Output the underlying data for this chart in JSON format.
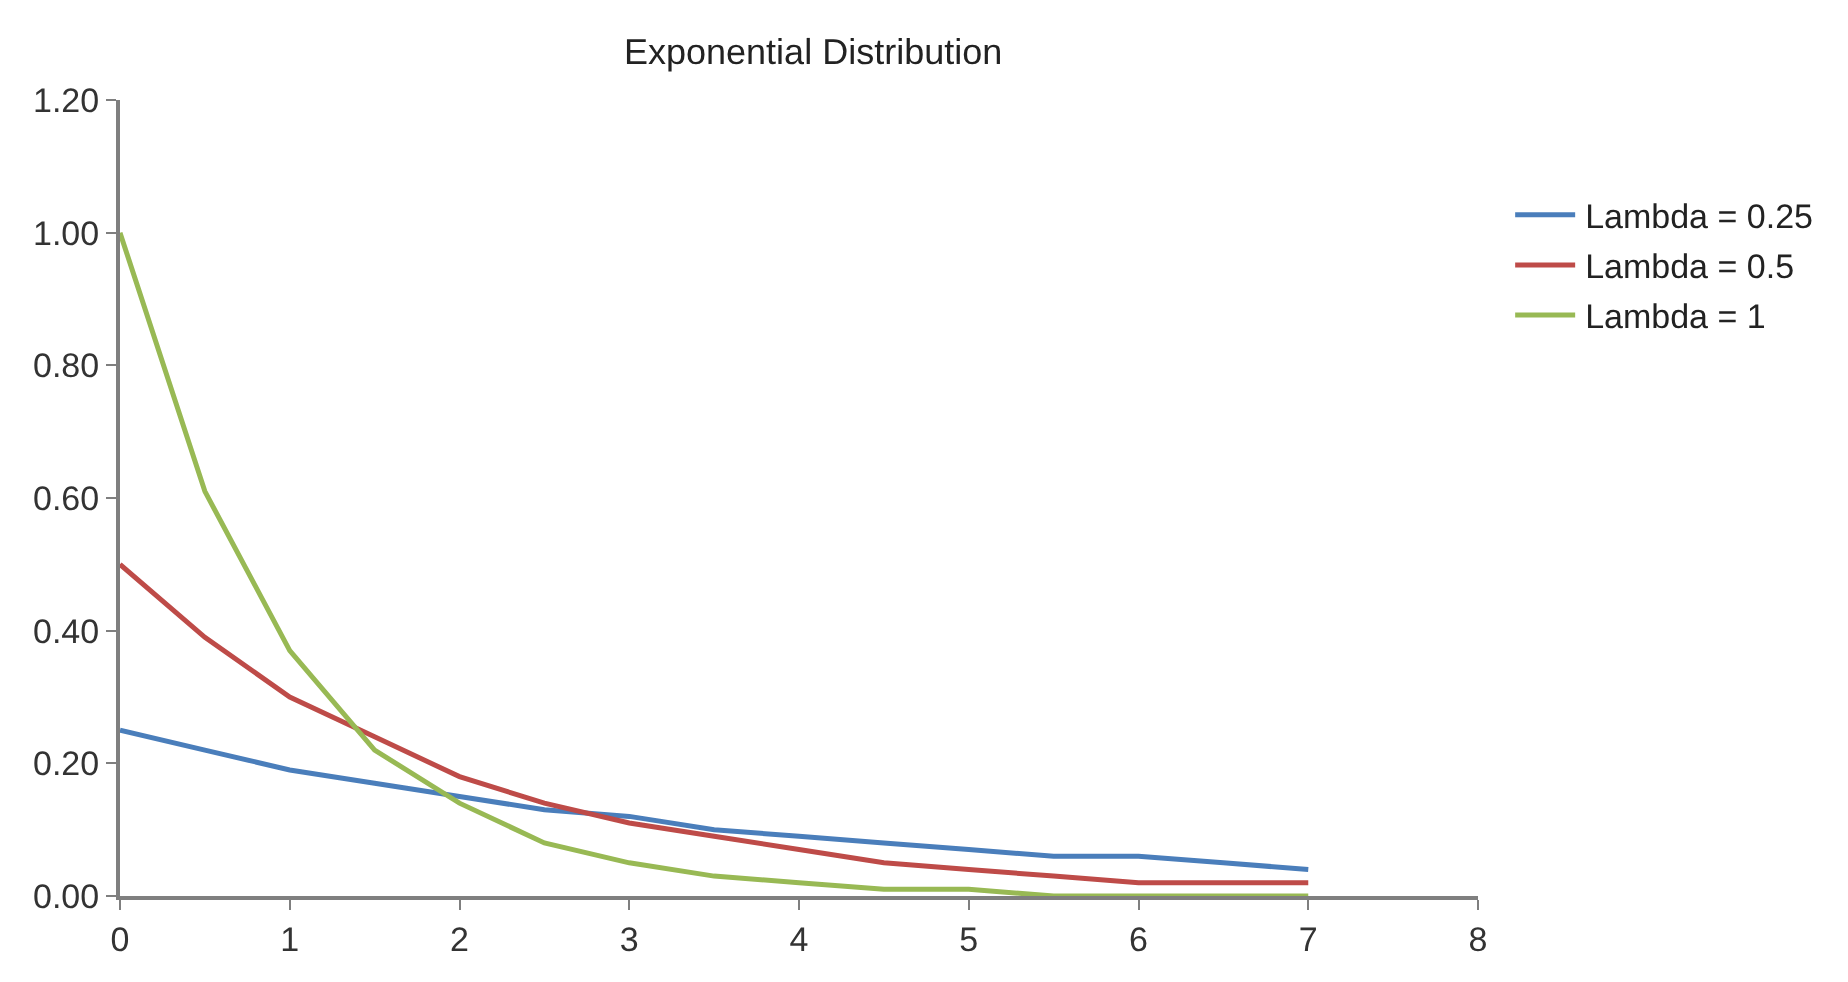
{
  "chart_data": {
    "type": "line",
    "title": "Exponential Distribution",
    "x": [
      0,
      0.5,
      1,
      1.5,
      2,
      2.5,
      3,
      3.5,
      4,
      4.5,
      5,
      5.5,
      6,
      6.5,
      7
    ],
    "series": [
      {
        "name": "Lambda = 0.25",
        "color": "#4a7ebb",
        "values": [
          0.25,
          0.22,
          0.19,
          0.17,
          0.15,
          0.13,
          0.12,
          0.1,
          0.09,
          0.08,
          0.07,
          0.06,
          0.06,
          0.05,
          0.04
        ]
      },
      {
        "name": "Lambda = 0.5",
        "color": "#be4b48",
        "values": [
          0.5,
          0.39,
          0.3,
          0.24,
          0.18,
          0.14,
          0.11,
          0.09,
          0.07,
          0.05,
          0.04,
          0.03,
          0.02,
          0.02,
          0.02
        ]
      },
      {
        "name": "Lambda = 1",
        "color": "#98b954",
        "values": [
          1.0,
          0.61,
          0.37,
          0.22,
          0.14,
          0.08,
          0.05,
          0.03,
          0.02,
          0.01,
          0.01,
          0.0,
          0.0,
          0.0,
          0.0
        ]
      }
    ],
    "xlim": [
      0,
      8
    ],
    "xticks": [
      0,
      1,
      2,
      3,
      4,
      5,
      6,
      7,
      8
    ],
    "ylim": [
      0,
      1.2
    ],
    "yticks": [
      {
        "value": 0,
        "label": "0.00"
      },
      {
        "value": 0.2,
        "label": "0.20"
      },
      {
        "value": 0.4,
        "label": "0.40"
      },
      {
        "value": 0.6,
        "label": "0.60"
      },
      {
        "value": 0.8,
        "label": "0.80"
      },
      {
        "value": 1.0,
        "label": "1.00"
      },
      {
        "value": 1.2,
        "label": "1.20"
      }
    ],
    "legend": "right",
    "marker": "none",
    "line_style": "solid"
  }
}
